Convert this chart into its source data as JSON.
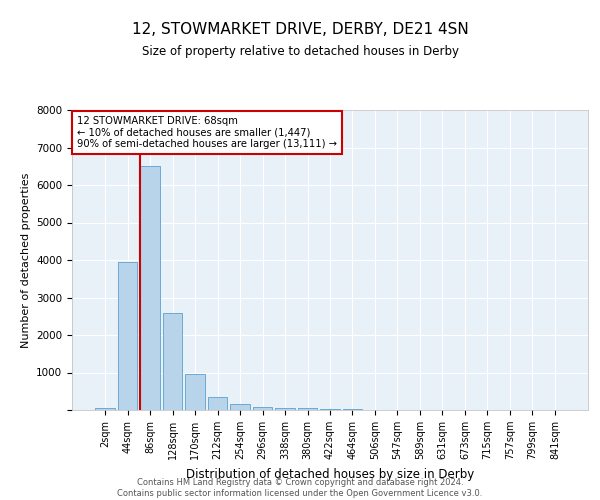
{
  "title": "12, STOWMARKET DRIVE, DERBY, DE21 4SN",
  "subtitle": "Size of property relative to detached houses in Derby",
  "xlabel": "Distribution of detached houses by size in Derby",
  "ylabel": "Number of detached properties",
  "bar_labels": [
    "2sqm",
    "44sqm",
    "86sqm",
    "128sqm",
    "170sqm",
    "212sqm",
    "254sqm",
    "296sqm",
    "338sqm",
    "380sqm",
    "422sqm",
    "464sqm",
    "506sqm",
    "547sqm",
    "589sqm",
    "631sqm",
    "673sqm",
    "715sqm",
    "757sqm",
    "799sqm",
    "841sqm"
  ],
  "bar_values": [
    50,
    3950,
    6500,
    2600,
    950,
    350,
    150,
    80,
    60,
    55,
    30,
    20,
    10,
    5,
    3,
    2,
    2,
    1,
    1,
    1,
    0
  ],
  "bar_color": "#b8d4ea",
  "bar_edgecolor": "#6aaad4",
  "background_color": "#e8f0f8",
  "grid_color": "#ffffff",
  "vline_x": 1.55,
  "vline_color": "#cc0000",
  "annotation_line1": "12 STOWMARKET DRIVE: 68sqm",
  "annotation_line2": "← 10% of detached houses are smaller (1,447)",
  "annotation_line3": "90% of semi-detached houses are larger (13,111) →",
  "annotation_box_color": "#ffffff",
  "annotation_box_edgecolor": "#cc0000",
  "ylim": [
    0,
    8000
  ],
  "yticks": [
    0,
    1000,
    2000,
    3000,
    4000,
    5000,
    6000,
    7000,
    8000
  ],
  "footer_line1": "Contains HM Land Registry data © Crown copyright and database right 2024.",
  "footer_line2": "Contains public sector information licensed under the Open Government Licence v3.0."
}
